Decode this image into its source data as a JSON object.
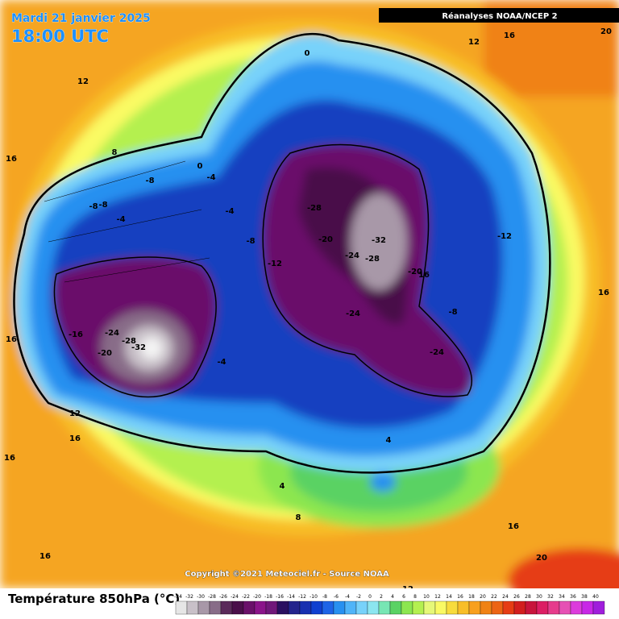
{
  "header": {
    "date": "Mardi 21 janvier 2025",
    "time": "18:00 UTC",
    "source": "Réanalyses NOAA/NCEP 2"
  },
  "footer": {
    "copyright": "Copyright ©2021 Meteociel.fr - Source NOAA",
    "legend_title": "Température 850hPa (°C)"
  },
  "colorbar": {
    "labels": [
      -34,
      -32,
      -30,
      -28,
      -26,
      -24,
      -22,
      -20,
      -18,
      -16,
      -14,
      -12,
      -10,
      -8,
      -6,
      -4,
      -2,
      0,
      2,
      4,
      6,
      8,
      10,
      12,
      14,
      16,
      18,
      20,
      22,
      24,
      26,
      28,
      30,
      32,
      34,
      36,
      38,
      40
    ],
    "colors": [
      "#e6e6e6",
      "#c8c0c8",
      "#a898a8",
      "#886c88",
      "#5a2a5a",
      "#4a0f4a",
      "#6a106a",
      "#8a148a",
      "#70187a",
      "#2a1060",
      "#24248c",
      "#1830b0",
      "#1040d0",
      "#1e64e6",
      "#2890f0",
      "#50b4f8",
      "#78d2fa",
      "#8ce6f0",
      "#78e6b4",
      "#5ad264",
      "#8ce650",
      "#b4f050",
      "#e6f878",
      "#fafa64",
      "#f8dc3c",
      "#f8be28",
      "#f8a01e",
      "#f08214",
      "#ec6414",
      "#e63c14",
      "#d21e1e",
      "#c8143c",
      "#dc1e64",
      "#e63c8c",
      "#e650b4",
      "#dc3cdc",
      "#c828e6",
      "#a01edc"
    ]
  },
  "map": {
    "contour_labels": [
      0,
      12,
      16,
      20,
      12,
      16,
      8,
      0,
      -4,
      -8,
      -8,
      -8,
      -4,
      -4,
      -8,
      -12,
      -28,
      -20,
      -32,
      -24,
      -28,
      -20,
      16,
      -12,
      -8,
      -24,
      -24,
      -16,
      -24,
      -28,
      -32,
      -20,
      -4,
      16,
      16,
      12,
      16,
      16,
      4,
      4,
      8,
      16,
      16,
      12,
      20
    ]
  }
}
